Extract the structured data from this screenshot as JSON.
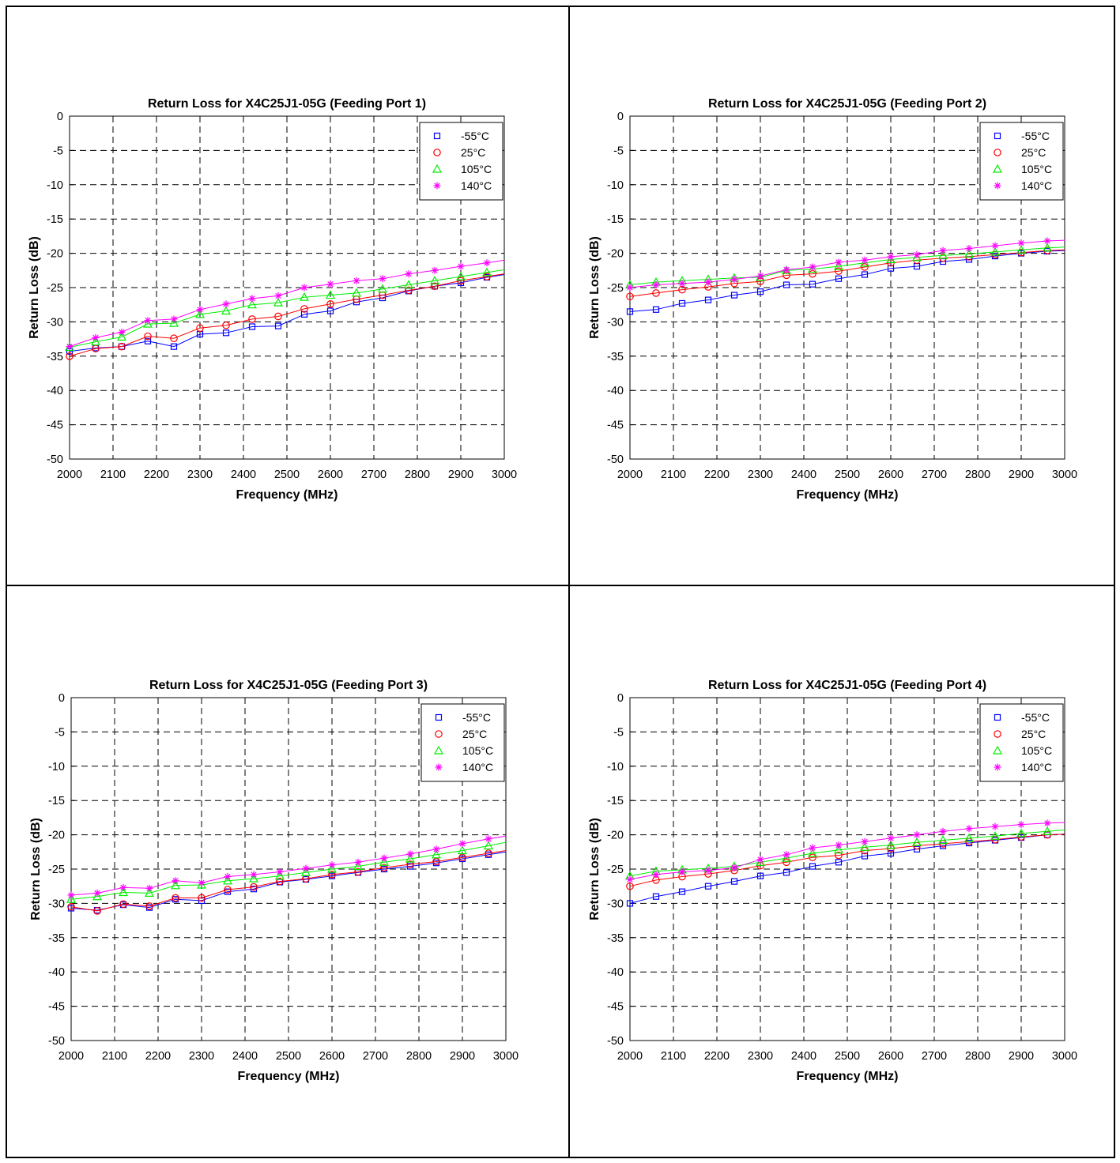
{
  "colors": {
    "neg55": "#0000ff",
    "c25": "#ff0000",
    "c105": "#00ee00",
    "c140": "#ff00ff"
  },
  "chart_data": [
    {
      "type": "line",
      "title": "Return Loss for X4C25J1-05G (Feeding Port 1)",
      "xlabel": "Frequency (MHz)",
      "ylabel": "Return Loss (dB)",
      "xlim": [
        2000,
        3000
      ],
      "ylim": [
        -50,
        0
      ],
      "xticks": [
        "2000",
        "2100",
        "2200",
        "2300",
        "2400",
        "2500",
        "2600",
        "2700",
        "2800",
        "2900",
        "3000"
      ],
      "yticks": [
        "0",
        "-5",
        "-10",
        "-15",
        "-20",
        "-25",
        "-30",
        "-35",
        "-40",
        "-45",
        "-50"
      ],
      "grid": true,
      "legend": "top-right",
      "x": [
        2000,
        2060,
        2120,
        2180,
        2240,
        2300,
        2360,
        2420,
        2480,
        2540,
        2600,
        2660,
        2720,
        2780,
        2840,
        2900,
        2960,
        3000
      ],
      "series": [
        {
          "name": "-55°C",
          "marker": "square",
          "values": [
            -34.3,
            -33.8,
            -33.6,
            -32.8,
            -33.6,
            -31.8,
            -31.6,
            -30.7,
            -30.6,
            -28.9,
            -28.4,
            -27.1,
            -26.5,
            -25.5,
            -24.8,
            -24.3,
            -23.5,
            -23.1
          ]
        },
        {
          "name": "25°C",
          "marker": "circle",
          "values": [
            -35.0,
            -33.9,
            -33.6,
            -32.1,
            -32.4,
            -30.9,
            -30.5,
            -29.6,
            -29.2,
            -28.1,
            -27.4,
            -26.7,
            -26.1,
            -25.4,
            -24.8,
            -24.0,
            -23.4,
            -23.0
          ]
        },
        {
          "name": "105°C",
          "marker": "triangle",
          "values": [
            -33.7,
            -32.9,
            -32.2,
            -30.3,
            -30.2,
            -28.9,
            -28.4,
            -27.5,
            -27.2,
            -26.4,
            -26.1,
            -25.8,
            -25.2,
            -24.6,
            -24.0,
            -23.4,
            -22.8,
            -22.4
          ]
        },
        {
          "name": "140°C",
          "marker": "asterisk",
          "values": [
            -33.6,
            -32.3,
            -31.5,
            -29.8,
            -29.6,
            -28.2,
            -27.4,
            -26.6,
            -26.2,
            -25.0,
            -24.5,
            -24.0,
            -23.7,
            -23.0,
            -22.5,
            -21.9,
            -21.4,
            -21.0
          ]
        }
      ]
    },
    {
      "type": "line",
      "title": "Return Loss for X4C25J1-05G (Feeding Port 2)",
      "xlabel": "Frequency (MHz)",
      "ylabel": "Return Loss (dB)",
      "xlim": [
        2000,
        3000
      ],
      "ylim": [
        -50,
        0
      ],
      "xticks": [
        "2000",
        "2100",
        "2200",
        "2300",
        "2400",
        "2500",
        "2600",
        "2700",
        "2800",
        "2900",
        "3000"
      ],
      "yticks": [
        "0",
        "-5",
        "-10",
        "-15",
        "-20",
        "-25",
        "-30",
        "-35",
        "-40",
        "-45",
        "-50"
      ],
      "grid": true,
      "legend": "top-right",
      "x": [
        2000,
        2060,
        2120,
        2180,
        2240,
        2300,
        2360,
        2420,
        2480,
        2540,
        2600,
        2660,
        2720,
        2780,
        2840,
        2900,
        2960,
        3000
      ],
      "series": [
        {
          "name": "-55°C",
          "marker": "square",
          "values": [
            -28.5,
            -28.2,
            -27.3,
            -26.8,
            -26.1,
            -25.6,
            -24.6,
            -24.5,
            -23.7,
            -23.1,
            -22.2,
            -21.9,
            -21.2,
            -20.9,
            -20.4,
            -20.0,
            -19.7,
            -19.6
          ]
        },
        {
          "name": "25°C",
          "marker": "circle",
          "values": [
            -26.3,
            -25.8,
            -25.3,
            -24.9,
            -24.4,
            -24.1,
            -23.2,
            -23.0,
            -22.6,
            -22.0,
            -21.4,
            -21.0,
            -20.7,
            -20.5,
            -20.2,
            -19.9,
            -19.6,
            -19.5
          ]
        },
        {
          "name": "105°C",
          "marker": "triangle",
          "values": [
            -24.6,
            -24.2,
            -24.0,
            -23.8,
            -23.6,
            -23.5,
            -22.5,
            -22.3,
            -21.9,
            -21.4,
            -20.9,
            -20.6,
            -20.3,
            -20.1,
            -19.8,
            -19.5,
            -19.2,
            -19.1
          ]
        },
        {
          "name": "140°C",
          "marker": "asterisk",
          "values": [
            -25.0,
            -24.6,
            -24.4,
            -24.2,
            -23.8,
            -23.3,
            -22.4,
            -22.0,
            -21.3,
            -21.0,
            -20.5,
            -20.2,
            -19.6,
            -19.3,
            -18.9,
            -18.5,
            -18.2,
            -18.1
          ]
        }
      ]
    },
    {
      "type": "line",
      "title": "Return Loss for X4C25J1-05G (Feeding Port 3)",
      "xlabel": "Frequency (MHz)",
      "ylabel": "Return Loss (dB)",
      "xlim": [
        2000,
        3000
      ],
      "ylim": [
        -50,
        0
      ],
      "xticks": [
        "2000",
        "2100",
        "2200",
        "2300",
        "2400",
        "2500",
        "2600",
        "2700",
        "2800",
        "2900",
        "3000"
      ],
      "yticks": [
        "0",
        "-5",
        "-10",
        "-15",
        "-20",
        "-25",
        "-30",
        "-35",
        "-40",
        "-45",
        "-50"
      ],
      "grid": true,
      "legend": "top-right",
      "x": [
        2000,
        2060,
        2120,
        2180,
        2240,
        2300,
        2360,
        2420,
        2480,
        2540,
        2600,
        2660,
        2720,
        2780,
        2840,
        2900,
        2960,
        3000
      ],
      "series": [
        {
          "name": "-55°C",
          "marker": "square",
          "values": [
            -30.7,
            -31.0,
            -30.2,
            -30.6,
            -29.4,
            -29.6,
            -28.3,
            -27.9,
            -26.9,
            -26.5,
            -26.0,
            -25.5,
            -25.0,
            -24.6,
            -24.1,
            -23.5,
            -22.9,
            -22.5
          ]
        },
        {
          "name": "25°C",
          "marker": "circle",
          "values": [
            -30.5,
            -31.1,
            -30.1,
            -30.4,
            -29.2,
            -29.2,
            -28.0,
            -27.6,
            -26.8,
            -26.4,
            -25.8,
            -25.4,
            -24.8,
            -24.3,
            -23.9,
            -23.3,
            -22.7,
            -22.3
          ]
        },
        {
          "name": "105°C",
          "marker": "triangle",
          "values": [
            -29.4,
            -29.0,
            -28.4,
            -28.5,
            -27.4,
            -27.3,
            -26.7,
            -26.4,
            -26.0,
            -25.5,
            -25.0,
            -24.6,
            -24.0,
            -23.5,
            -22.9,
            -22.3,
            -21.6,
            -21.1
          ]
        },
        {
          "name": "140°C",
          "marker": "asterisk",
          "values": [
            -28.8,
            -28.5,
            -27.7,
            -27.8,
            -26.7,
            -27.0,
            -26.1,
            -25.8,
            -25.4,
            -24.9,
            -24.4,
            -24.0,
            -23.4,
            -22.8,
            -22.1,
            -21.3,
            -20.6,
            -20.2
          ]
        }
      ]
    },
    {
      "type": "line",
      "title": "Return Loss for X4C25J1-05G (Feeding Port 4)",
      "xlabel": "Frequency (MHz)",
      "ylabel": "Return Loss (dB)",
      "xlim": [
        2000,
        3000
      ],
      "ylim": [
        -50,
        0
      ],
      "xticks": [
        "2000",
        "2100",
        "2200",
        "2300",
        "2400",
        "2500",
        "2600",
        "2700",
        "2800",
        "2900",
        "3000"
      ],
      "yticks": [
        "0",
        "-5",
        "-10",
        "-15",
        "-20",
        "-25",
        "-30",
        "-35",
        "-40",
        "-45",
        "-50"
      ],
      "grid": true,
      "legend": "top-right",
      "x": [
        2000,
        2060,
        2120,
        2180,
        2240,
        2300,
        2360,
        2420,
        2480,
        2540,
        2600,
        2660,
        2720,
        2780,
        2840,
        2900,
        2960,
        3000
      ],
      "series": [
        {
          "name": "-55°C",
          "marker": "square",
          "values": [
            -30.0,
            -29.0,
            -28.3,
            -27.5,
            -26.8,
            -26.0,
            -25.5,
            -24.6,
            -24.0,
            -23.1,
            -22.7,
            -22.1,
            -21.6,
            -21.2,
            -20.8,
            -20.4,
            -20.0,
            -19.9
          ]
        },
        {
          "name": "25°C",
          "marker": "circle",
          "values": [
            -27.5,
            -26.6,
            -26.1,
            -25.7,
            -25.2,
            -24.5,
            -24.0,
            -23.3,
            -23.0,
            -22.3,
            -22.0,
            -21.6,
            -21.3,
            -21.0,
            -20.7,
            -20.3,
            -20.0,
            -19.9
          ]
        },
        {
          "name": "105°C",
          "marker": "triangle",
          "values": [
            -26.0,
            -25.3,
            -25.1,
            -24.9,
            -24.6,
            -24.0,
            -23.4,
            -22.7,
            -22.2,
            -21.8,
            -21.5,
            -21.1,
            -20.8,
            -20.5,
            -20.2,
            -19.8,
            -19.5,
            -19.3
          ]
        },
        {
          "name": "140°C",
          "marker": "asterisk",
          "values": [
            -26.5,
            -25.8,
            -25.4,
            -25.2,
            -24.8,
            -23.6,
            -22.9,
            -21.9,
            -21.5,
            -21.0,
            -20.5,
            -20.0,
            -19.5,
            -19.1,
            -18.8,
            -18.5,
            -18.3,
            -18.2
          ]
        }
      ]
    }
  ]
}
